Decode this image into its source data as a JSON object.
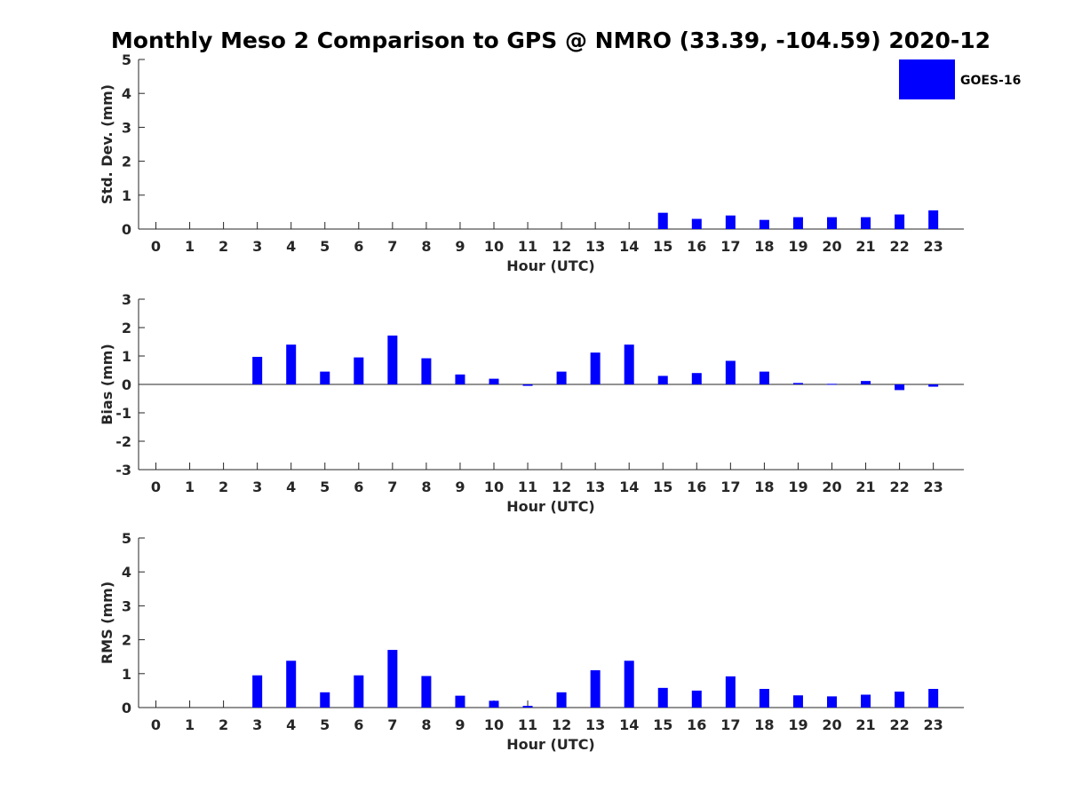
{
  "chart_data": {
    "title": "Monthly Meso 2 Comparison to GPS @ NMRO (33.39, -104.59) 2020-12",
    "legend": {
      "label": "GOES-16",
      "placement": "top-right",
      "color": "#0000ff"
    },
    "bar_color": "#0000ff",
    "panels": [
      {
        "type": "bar",
        "ylabel": "Std. Dev. (mm)",
        "xlabel": "Hour (UTC)",
        "ylim": [
          0,
          5
        ],
        "yticks": [
          0,
          1,
          2,
          3,
          4,
          5
        ],
        "categories": [
          "0",
          "1",
          "2",
          "3",
          "4",
          "5",
          "6",
          "7",
          "8",
          "9",
          "10",
          "11",
          "12",
          "13",
          "14",
          "15",
          "16",
          "17",
          "18",
          "19",
          "20",
          "21",
          "22",
          "23"
        ],
        "values": [
          null,
          null,
          null,
          null,
          null,
          null,
          null,
          null,
          null,
          null,
          null,
          null,
          null,
          null,
          null,
          0.48,
          0.3,
          0.4,
          0.27,
          0.35,
          0.35,
          0.35,
          0.43,
          0.55
        ]
      },
      {
        "type": "bar",
        "ylabel": "Bias (mm)",
        "xlabel": "Hour (UTC)",
        "ylim": [
          -3,
          3
        ],
        "yticks": [
          -3,
          -2,
          -1,
          0,
          1,
          2,
          3
        ],
        "categories": [
          "0",
          "1",
          "2",
          "3",
          "4",
          "5",
          "6",
          "7",
          "8",
          "9",
          "10",
          "11",
          "12",
          "13",
          "14",
          "15",
          "16",
          "17",
          "18",
          "19",
          "20",
          "21",
          "22",
          "23"
        ],
        "values": [
          null,
          null,
          null,
          0.97,
          1.4,
          0.45,
          0.95,
          1.72,
          0.92,
          0.35,
          0.2,
          -0.05,
          0.45,
          1.12,
          1.4,
          0.3,
          0.4,
          0.83,
          0.45,
          0.05,
          0.02,
          0.12,
          -0.2,
          -0.08
        ]
      },
      {
        "type": "bar",
        "ylabel": "RMS (mm)",
        "xlabel": "Hour (UTC)",
        "ylim": [
          0,
          5
        ],
        "yticks": [
          0,
          1,
          2,
          3,
          4,
          5
        ],
        "categories": [
          "0",
          "1",
          "2",
          "3",
          "4",
          "5",
          "6",
          "7",
          "8",
          "9",
          "10",
          "11",
          "12",
          "13",
          "14",
          "15",
          "16",
          "17",
          "18",
          "19",
          "20",
          "21",
          "22",
          "23"
        ],
        "values": [
          null,
          null,
          null,
          0.95,
          1.38,
          0.45,
          0.95,
          1.7,
          0.93,
          0.35,
          0.2,
          0.05,
          0.45,
          1.1,
          1.38,
          0.58,
          0.5,
          0.92,
          0.55,
          0.36,
          0.33,
          0.38,
          0.47,
          0.55
        ]
      }
    ]
  }
}
